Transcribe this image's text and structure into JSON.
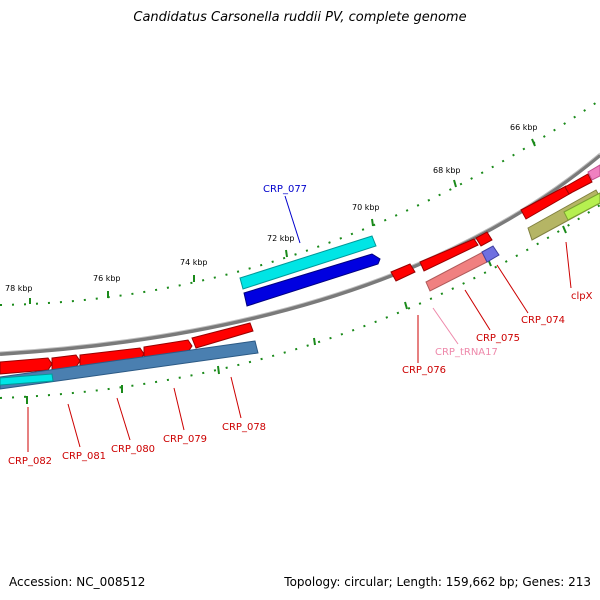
{
  "title": "Candidatus Carsonella ruddii PV, complete genome",
  "footer": {
    "accession": "Accession: NC_008512",
    "summary": "Topology: circular; Length: 159,662 bp; Genes: 213"
  },
  "ruler": {
    "ticks": [
      "66 kbp",
      "68 kbp",
      "70 kbp",
      "72 kbp",
      "74 kbp",
      "76 kbp",
      "78 kbp"
    ]
  },
  "colors": {
    "backbone": "#808080",
    "gene_forward": "#ff0000",
    "gene_reverse": "#ff0000",
    "cds_cyan": "#00e5e5",
    "cds_blue": "#0000e0",
    "trna": "#f08080",
    "steel": "#4a7fb0",
    "olive": "#b5b565",
    "lime": "#b6f050",
    "tick_green": "#1a8a1a",
    "label_red": "#cc0000",
    "label_blue": "#0000cc",
    "label_pink": "#ee88aa"
  },
  "labels": {
    "crp_077": "CRP_077",
    "clpx": "clpX",
    "crp_074": "CRP_074",
    "crp_075": "CRP_075",
    "crp_trna17": "CRP_tRNA17",
    "crp_076": "CRP_076",
    "crp_078": "CRP_078",
    "crp_079": "CRP_079",
    "crp_080": "CRP_080",
    "crp_081": "CRP_081",
    "crp_082": "CRP_082"
  }
}
